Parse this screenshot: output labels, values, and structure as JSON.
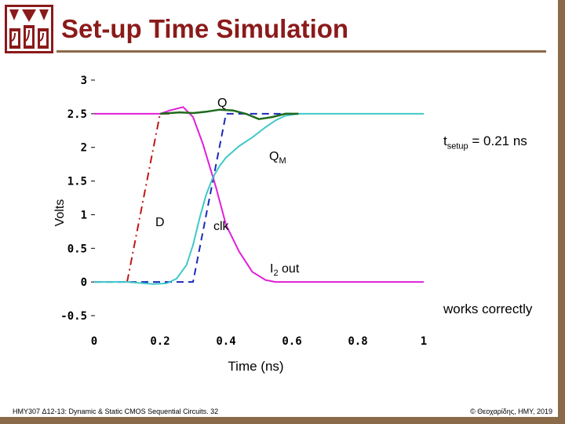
{
  "slide": {
    "title": "Set-up Time Simulation",
    "footer_left": "HMY307 Δ12-13: Dynamic & Static CMOS Sequential Circuits. 32",
    "footer_right": "© Θεοχαρίδης, ΗΜΥ, 2019",
    "annotation_works": "works correctly",
    "tsetup_main": "t",
    "tsetup_sub": "setup",
    "tsetup_rest": " = 0.21 ns"
  },
  "colors": {
    "brand": "#8b1a1a",
    "frame": "#8a6a48",
    "clk": "#1a2ab8",
    "d": "#c01818",
    "q": "#1e6a1e",
    "qm": "#40c8c8",
    "i2out": "#e020d8"
  },
  "chart_data": {
    "type": "line",
    "ylabel": "Volts",
    "xlabel": "Time (ns)",
    "xlim": [
      0,
      1
    ],
    "ylim": [
      -0.5,
      3
    ],
    "xticks": [
      "0",
      "0.2",
      "0.4",
      "0.6",
      "0.8",
      "1"
    ],
    "yticks": [
      "3",
      "2.5",
      "2",
      "1.5",
      "1",
      "0.5",
      "0",
      "-0.5"
    ],
    "labels": {
      "q": "Q",
      "qm_main": "Q",
      "qm_sub": "M",
      "d": "D",
      "clk": "clk",
      "i2_main": "I",
      "i2_sub": "2",
      "i2_rest": " out"
    },
    "series": [
      {
        "key": "clk",
        "style": "dashed",
        "x": [
          0,
          0.3,
          0.4,
          0.56,
          0.6
        ],
        "y": [
          0,
          0,
          2.5,
          2.5,
          2.5
        ]
      },
      {
        "key": "d",
        "style": "dashdot",
        "x": [
          0.1,
          0.2,
          0.23
        ],
        "y": [
          0,
          2.5,
          2.5
        ]
      },
      {
        "key": "i2out",
        "style": "solid",
        "x": [
          0,
          0.2,
          0.23,
          0.27,
          0.3,
          0.33,
          0.37,
          0.4,
          0.44,
          0.48,
          0.52,
          0.55,
          0.6,
          1.0
        ],
        "y": [
          2.5,
          2.5,
          2.55,
          2.6,
          2.45,
          2.05,
          1.4,
          0.85,
          0.45,
          0.15,
          0.03,
          0,
          0,
          0
        ]
      },
      {
        "key": "qm",
        "style": "solid",
        "x": [
          0,
          0.1,
          0.18,
          0.22,
          0.25,
          0.28,
          0.3,
          0.32,
          0.34,
          0.36,
          0.38,
          0.4,
          0.44,
          0.48,
          0.52,
          0.55,
          0.58,
          0.62,
          0.65,
          1.0
        ],
        "y": [
          0,
          0,
          -0.03,
          -0.02,
          0.05,
          0.25,
          0.55,
          0.95,
          1.3,
          1.55,
          1.72,
          1.85,
          2.02,
          2.15,
          2.3,
          2.4,
          2.47,
          2.5,
          2.5,
          2.5
        ]
      },
      {
        "key": "q",
        "style": "solid",
        "x": [
          0.2,
          0.26,
          0.3,
          0.34,
          0.38,
          0.42,
          0.46,
          0.5,
          0.54,
          0.58,
          0.62
        ],
        "y": [
          2.5,
          2.52,
          2.51,
          2.53,
          2.56,
          2.55,
          2.5,
          2.42,
          2.45,
          2.5,
          2.5
        ]
      }
    ]
  }
}
